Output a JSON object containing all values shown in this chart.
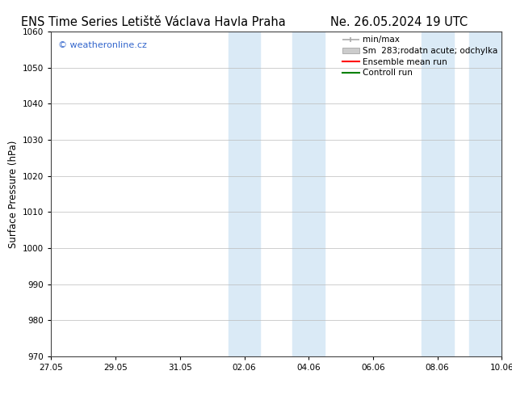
{
  "title_left": "ENS Time Series Letiště Václava Havla Praha",
  "title_right": "Ne. 26.05.2024 19 UTC",
  "ylabel": "Surface Pressure (hPa)",
  "ylim": [
    970,
    1060
  ],
  "yticks": [
    970,
    980,
    990,
    1000,
    1010,
    1020,
    1030,
    1040,
    1050,
    1060
  ],
  "xlim": [
    0,
    14
  ],
  "xtick_labels": [
    "27.05",
    "29.05",
    "31.05",
    "02.06",
    "04.06",
    "06.06",
    "08.06",
    "10.06"
  ],
  "xtick_positions": [
    0,
    2,
    4,
    6,
    8,
    10,
    12,
    14
  ],
  "shaded_bands": [
    {
      "x_start": 5.5,
      "x_end": 6.5
    },
    {
      "x_start": 7.5,
      "x_end": 8.5
    },
    {
      "x_start": 11.5,
      "x_end": 12.5
    },
    {
      "x_start": 13.0,
      "x_end": 14.0
    }
  ],
  "shaded_color": "#daeaf6",
  "watermark_text": "© weatheronline.cz",
  "watermark_color": "#3366cc",
  "background_color": "#ffffff",
  "grid_color": "#bbbbbb",
  "title_fontsize": 10.5,
  "label_fontsize": 8.5,
  "tick_fontsize": 7.5,
  "legend_fontsize": 7.5,
  "legend_label_min_max": "min/max",
  "legend_label_sm": "Sm  283;rodatn acute; odchylka",
  "legend_label_ens": "Ensemble mean run",
  "legend_label_ctrl": "Controll run",
  "legend_color_min_max": "#aaaaaa",
  "legend_color_sm": "#cccccc",
  "legend_color_ens": "#ff0000",
  "legend_color_ctrl": "#008000"
}
